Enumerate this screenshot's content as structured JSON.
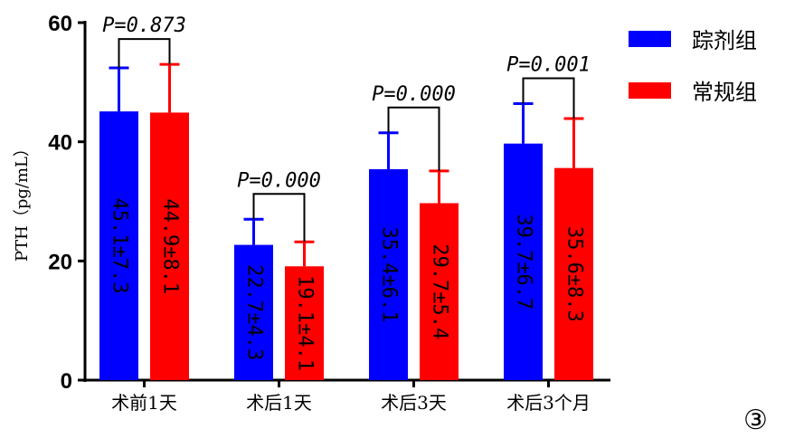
{
  "chart_data": {
    "type": "bar",
    "title": "",
    "xlabel": "",
    "ylabel": "PTH（pg/mL）",
    "ylim": [
      0,
      60
    ],
    "yticks": [
      0,
      20,
      40,
      60
    ],
    "categories": [
      "术前1天",
      "术后1天",
      "术后3天",
      "术后3个月"
    ],
    "series": [
      {
        "name": "踪剂组",
        "color": "#0000ff",
        "values": [
          45.1,
          22.7,
          35.4,
          39.7
        ],
        "sd": [
          7.3,
          4.3,
          6.1,
          6.7
        ],
        "labels": [
          "45.1±7.3",
          "22.7±4.3",
          "35.4±6.1",
          "39.7±6.7"
        ]
      },
      {
        "name": "常规组",
        "color": "#ff0000",
        "values": [
          44.9,
          19.1,
          29.7,
          35.6
        ],
        "sd": [
          8.1,
          4.1,
          5.4,
          8.3
        ],
        "labels": [
          "44.9±8.1",
          "19.1±4.1",
          "29.7±5.4",
          "35.6±8.3"
        ]
      }
    ],
    "pvalues": [
      "P=0.873",
      "P=0.000",
      "P=0.000",
      "P=0.001"
    ],
    "legend_position": "top-right",
    "panel_label": "③"
  }
}
